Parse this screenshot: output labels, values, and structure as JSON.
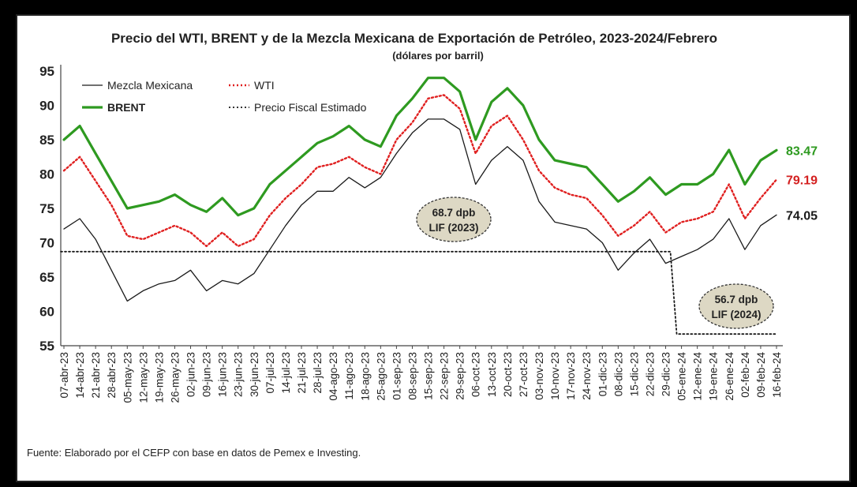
{
  "chart_data": {
    "type": "line",
    "title": "Precio del WTI, BRENT y de la Mezcla Mexicana de Exportación de Petróleo, 2023-2024/Febrero",
    "subtitle": "(dólares por barril)",
    "source": "Fuente: Elaborado por el CEFP con base en datos de Pemex e Investing.",
    "ylim": [
      55,
      95
    ],
    "yticks": [
      55,
      60,
      65,
      70,
      75,
      80,
      85,
      90,
      95
    ],
    "x": [
      "07-abr-23",
      "14-abr-23",
      "21-abr-23",
      "28-abr-23",
      "05-may-23",
      "12-may-23",
      "19-may-23",
      "26-may-23",
      "02-jun-23",
      "09-jun-23",
      "16-jun-23",
      "23-jun-23",
      "30-jun-23",
      "07-jul-23",
      "14-jul-23",
      "21-jul-23",
      "28-jul-23",
      "04-ago-23",
      "11-ago-23",
      "18-ago-23",
      "25-ago-23",
      "01-sep-23",
      "08-sep-23",
      "15-sep-23",
      "22-sep-23",
      "29-sep-23",
      "06-oct-23",
      "13-oct-23",
      "20-oct-23",
      "27-oct-23",
      "03-nov-23",
      "10-nov-23",
      "17-nov-23",
      "24-nov-23",
      "01-dic-23",
      "08-dic-23",
      "15-dic-23",
      "22-dic-23",
      "29-dic-23",
      "05-ene-24",
      "12-ene-24",
      "19-ene-24",
      "26-ene-24",
      "02-feb-24",
      "09-feb-24",
      "16-feb-24"
    ],
    "series": [
      {
        "name": "Mezcla Mexicana",
        "color": "#1a1a1a",
        "style": "solid",
        "values": [
          72.0,
          73.5,
          70.5,
          66.0,
          61.5,
          63.0,
          64.0,
          64.5,
          66.0,
          63.0,
          64.5,
          64.0,
          65.5,
          69.0,
          72.5,
          75.5,
          77.5,
          77.5,
          79.5,
          78.0,
          79.5,
          83.0,
          86.0,
          88.0,
          88.0,
          86.5,
          78.5,
          82.0,
          84.0,
          82.0,
          76.0,
          73.0,
          72.5,
          72.0,
          70.0,
          66.0,
          68.5,
          70.5,
          67.0,
          68.0,
          69.0,
          70.5,
          73.5,
          69.0,
          72.5,
          74.05
        ]
      },
      {
        "name": "WTI",
        "color": "#e02020",
        "style": "dotted",
        "values": [
          80.5,
          82.5,
          79.0,
          75.5,
          71.0,
          70.5,
          71.5,
          72.5,
          71.5,
          69.5,
          71.5,
          69.5,
          70.5,
          74.0,
          76.5,
          78.5,
          81.0,
          81.5,
          82.5,
          81.0,
          80.0,
          85.0,
          87.5,
          91.0,
          91.5,
          89.5,
          83.0,
          87.0,
          88.5,
          85.0,
          80.5,
          78.0,
          77.0,
          76.5,
          74.0,
          71.0,
          72.5,
          74.5,
          71.5,
          73.0,
          73.5,
          74.5,
          78.5,
          73.5,
          76.5,
          79.19
        ]
      },
      {
        "name": "BRENT",
        "color": "#2e9a20",
        "style": "solid",
        "values": [
          85.0,
          87.0,
          83.0,
          79.0,
          75.0,
          75.5,
          76.0,
          77.0,
          75.5,
          74.5,
          76.5,
          74.0,
          75.0,
          78.5,
          80.5,
          82.5,
          84.5,
          85.5,
          87.0,
          85.0,
          84.0,
          88.5,
          91.0,
          94.0,
          94.0,
          92.0,
          85.0,
          90.5,
          92.5,
          90.0,
          85.0,
          82.0,
          81.5,
          81.0,
          78.5,
          76.0,
          77.5,
          79.5,
          77.0,
          78.5,
          78.5,
          80.0,
          83.5,
          78.5,
          82.0,
          83.47
        ]
      },
      {
        "name": "Precio Fiscal Estimado",
        "color": "#1a1a1a",
        "style": "dotted",
        "values": [
          68.7,
          68.7,
          68.7,
          68.7,
          68.7,
          68.7,
          68.7,
          68.7,
          68.7,
          68.7,
          68.7,
          68.7,
          68.7,
          68.7,
          68.7,
          68.7,
          68.7,
          68.7,
          68.7,
          68.7,
          68.7,
          68.7,
          68.7,
          68.7,
          68.7,
          68.7,
          68.7,
          68.7,
          68.7,
          68.7,
          68.7,
          68.7,
          68.7,
          68.7,
          68.7,
          68.7,
          68.7,
          68.7,
          68.7,
          56.7,
          56.7,
          56.7,
          56.7,
          56.7,
          56.7,
          56.7
        ]
      }
    ],
    "end_labels": [
      {
        "series": "BRENT",
        "text": "83.47",
        "color": "#2e9a20"
      },
      {
        "series": "WTI",
        "text": "79.19",
        "color": "#d42020"
      },
      {
        "series": "Mezcla Mexicana",
        "text": "74.05",
        "color": "#1a1a1a"
      }
    ],
    "annotations": [
      {
        "lines": [
          "68.7 dpb",
          "LIF (2023)"
        ]
      },
      {
        "lines": [
          "56.7 dpb",
          "LIF (2024)"
        ]
      }
    ],
    "grid": false,
    "legend_position": "top-left"
  }
}
